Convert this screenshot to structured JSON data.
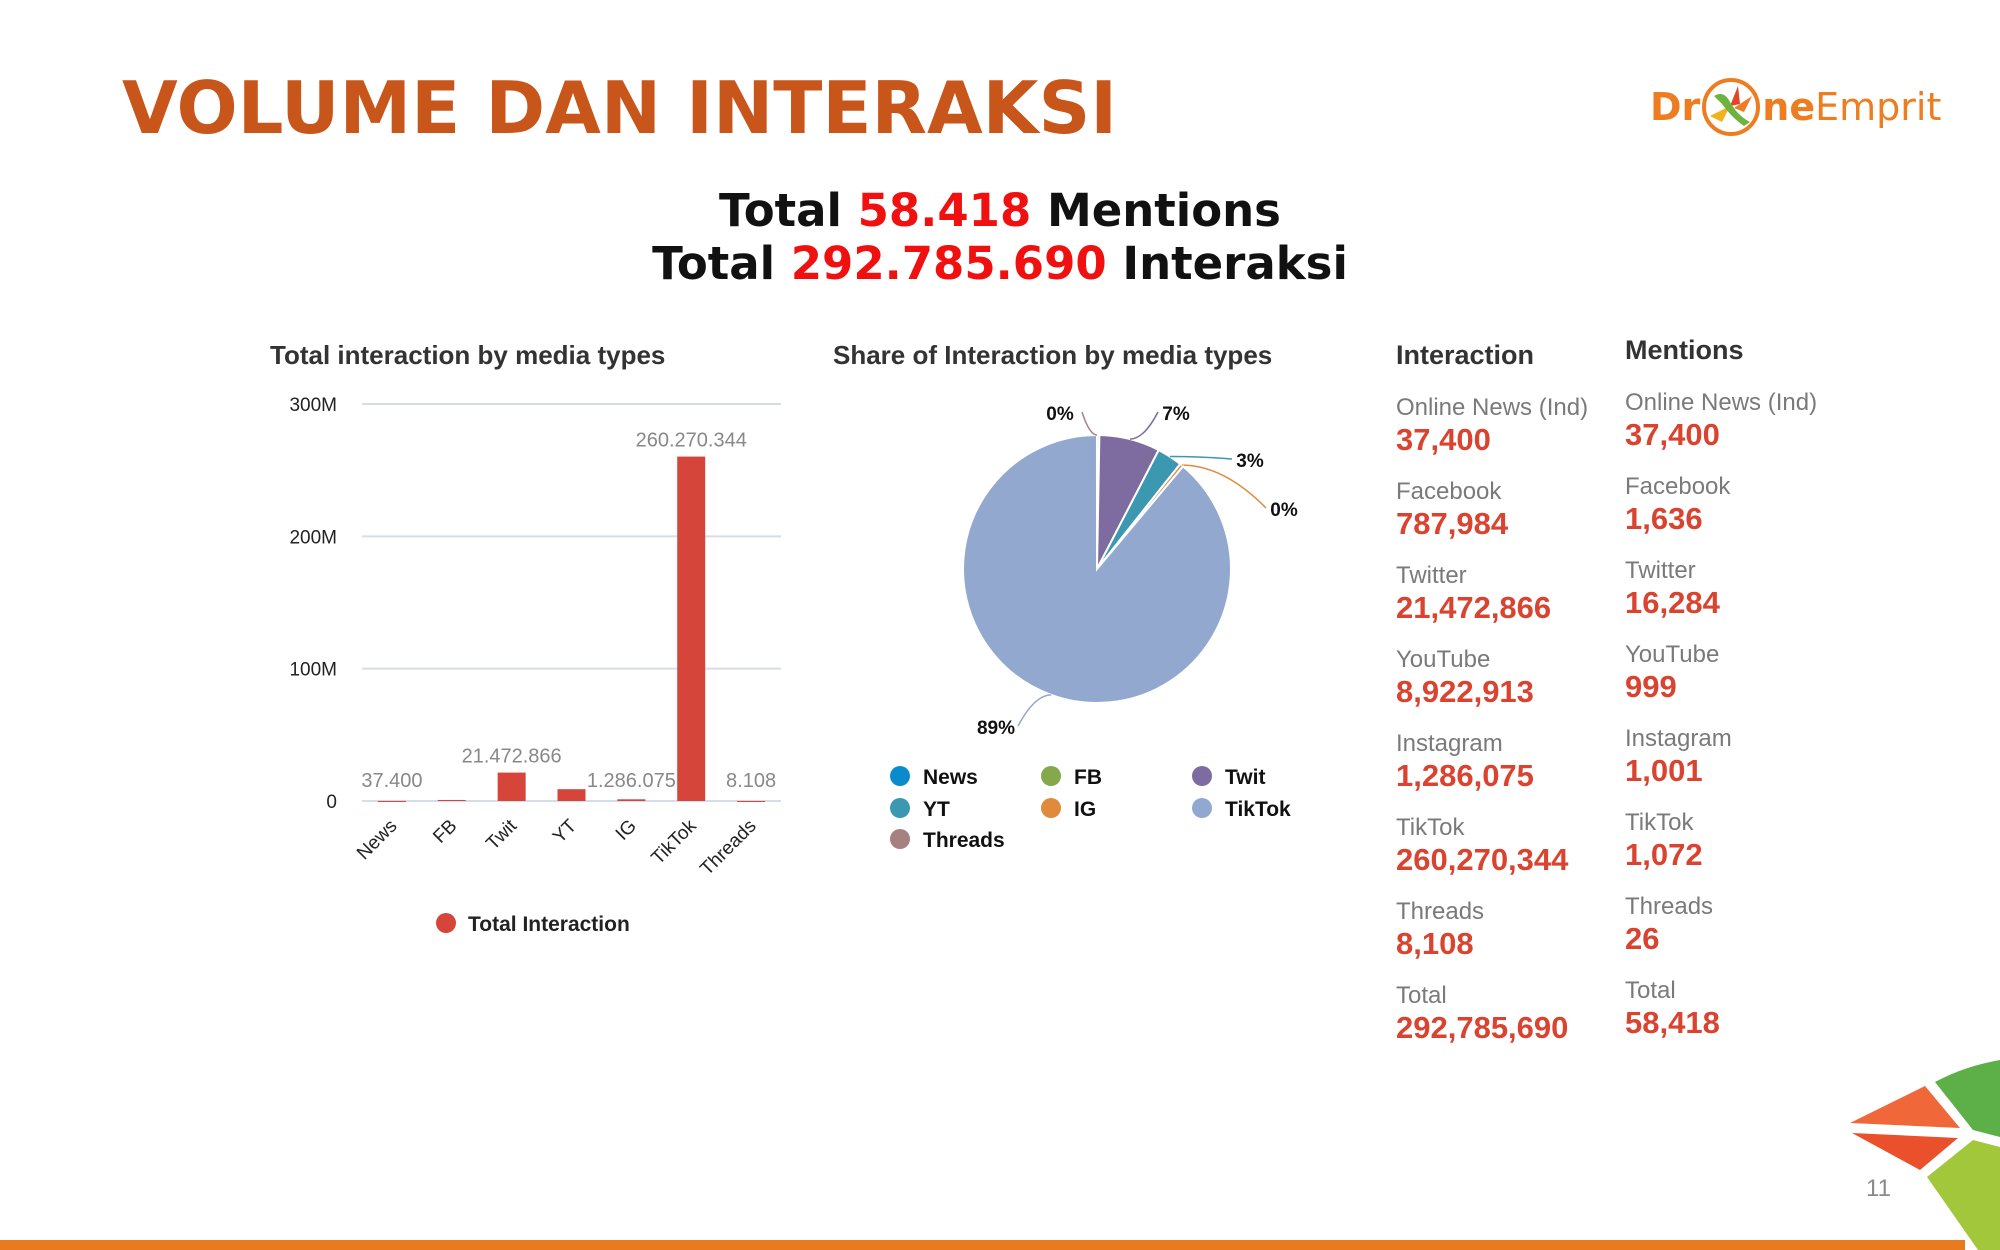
{
  "page": {
    "title": "VOLUME DAN INTERAKSI",
    "number": "11"
  },
  "logo": {
    "part1": "Dr",
    "part2": "ne",
    "part3": "Emprit"
  },
  "totals": {
    "prefix": "Total",
    "mentions_value": "58.418",
    "mentions_suffix": "Mentions",
    "interactions_value": "292.785.690",
    "interactions_suffix": "Interaksi"
  },
  "colors": {
    "accent": "#d9432f",
    "title": "#c8561a",
    "highlight": "#f01010"
  },
  "chart_data": [
    {
      "type": "bar",
      "title": "Total interaction by media types",
      "categories": [
        "News",
        "FB",
        "Twit",
        "YT",
        "IG",
        "TikTok",
        "Threads"
      ],
      "values": [
        37400,
        787984,
        21472866,
        8922913,
        1286075,
        260270344,
        8108
      ],
      "data_labels": [
        "37.400",
        null,
        "21.472.866",
        null,
        "1.286.075",
        "260.270.344",
        "8.108"
      ],
      "yticks": [
        {
          "value": 0,
          "label": "0"
        },
        {
          "value": 100000000,
          "label": "100M"
        },
        {
          "value": 200000000,
          "label": "200M"
        },
        {
          "value": 300000000,
          "label": "300M"
        }
      ],
      "ylim": [
        0,
        300000000
      ],
      "grid": true,
      "legend": {
        "label": "Total Interaction",
        "placement": "bottom"
      },
      "color": "#d6453a"
    },
    {
      "type": "pie",
      "title": "Share of Interaction by media types",
      "slices": [
        {
          "name": "News",
          "value": 37400,
          "label": "",
          "color": "#0a8ccc"
        },
        {
          "name": "FB",
          "value": 787984,
          "label": "",
          "color": "#84a94d"
        },
        {
          "name": "Twit",
          "value": 21472866,
          "label": "7%",
          "color": "#7e6b9f"
        },
        {
          "name": "YT",
          "value": 8922913,
          "label": "3%",
          "color": "#3c98b0"
        },
        {
          "name": "IG",
          "value": 1286075,
          "label": "0%",
          "color": "#e08a3c"
        },
        {
          "name": "TikTok",
          "value": 260270344,
          "label": "89%",
          "color": "#93a8cf"
        },
        {
          "name": "Threads",
          "value": 8108,
          "label": "0%",
          "color": "#a5817f"
        }
      ],
      "legend_placement": "bottom"
    }
  ],
  "interaction_table": {
    "header": "Interaction",
    "rows": [
      {
        "label": "Online News (Ind)",
        "value": "37,400"
      },
      {
        "label": "Facebook",
        "value": "787,984"
      },
      {
        "label": "Twitter",
        "value": "21,472,866"
      },
      {
        "label": "YouTube",
        "value": "8,922,913"
      },
      {
        "label": "Instagram",
        "value": "1,286,075"
      },
      {
        "label": "TikTok",
        "value": "260,270,344"
      },
      {
        "label": "Threads",
        "value": "8,108"
      },
      {
        "label": "Total",
        "value": "292,785,690"
      }
    ]
  },
  "mentions_table": {
    "header": "Mentions",
    "rows": [
      {
        "label": "Online News (Ind)",
        "value": "37,400"
      },
      {
        "label": "Facebook",
        "value": "1,636"
      },
      {
        "label": "Twitter",
        "value": "16,284"
      },
      {
        "label": "YouTube",
        "value": "999"
      },
      {
        "label": "Instagram",
        "value": "1,001"
      },
      {
        "label": "TikTok",
        "value": "1,072"
      },
      {
        "label": "Threads",
        "value": "26"
      },
      {
        "label": "Total",
        "value": "58,418"
      }
    ]
  }
}
